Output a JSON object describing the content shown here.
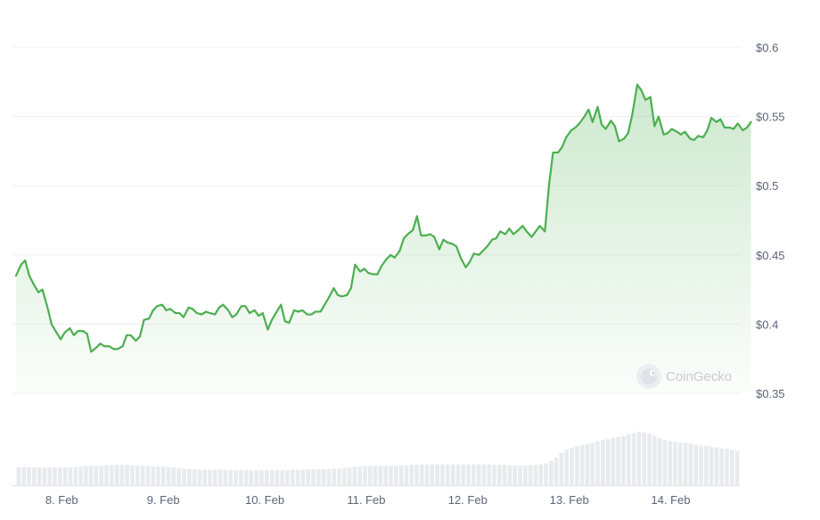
{
  "chart_data": {
    "type": "area",
    "title": "",
    "xlabel": "",
    "ylabel": "",
    "y_tick_labels": [
      "$0.35",
      "$0.4",
      "$0.45",
      "$0.5",
      "$0.55",
      "$0.6"
    ],
    "y_ticks": [
      0.35,
      0.4,
      0.45,
      0.5,
      0.55,
      0.6
    ],
    "ylim": [
      0.35,
      0.6
    ],
    "x_tick_labels": [
      "8. Feb",
      "9. Feb",
      "10. Feb",
      "11. Feb",
      "12. Feb",
      "13. Feb",
      "14. Feb"
    ],
    "x_ticks": [
      0.45,
      1.45,
      2.45,
      3.45,
      4.45,
      5.45,
      6.45
    ],
    "xlim": [
      0,
      7.13
    ],
    "grid": true,
    "legend": "none",
    "line_color": "#4caf50",
    "fill_color": "#4caf50",
    "volume_color": "#e8eaee",
    "watermark": "CoinGecko",
    "series": [
      {
        "values": [
          [
            0.0,
            0.435
          ],
          [
            0.05,
            0.443
          ],
          [
            0.09,
            0.446
          ],
          [
            0.13,
            0.435
          ],
          [
            0.18,
            0.428
          ],
          [
            0.22,
            0.423
          ],
          [
            0.26,
            0.425
          ],
          [
            0.31,
            0.412
          ],
          [
            0.35,
            0.4
          ],
          [
            0.39,
            0.395
          ],
          [
            0.44,
            0.389
          ],
          [
            0.48,
            0.394
          ],
          [
            0.53,
            0.397
          ],
          [
            0.57,
            0.392
          ],
          [
            0.61,
            0.395
          ],
          [
            0.66,
            0.395
          ],
          [
            0.7,
            0.393
          ],
          [
            0.74,
            0.38
          ],
          [
            0.79,
            0.383
          ],
          [
            0.83,
            0.386
          ],
          [
            0.87,
            0.384
          ],
          [
            0.92,
            0.384
          ],
          [
            0.96,
            0.382
          ],
          [
            1.0,
            0.382
          ],
          [
            1.05,
            0.384
          ],
          [
            1.09,
            0.392
          ],
          [
            1.13,
            0.392
          ],
          [
            1.18,
            0.388
          ],
          [
            1.22,
            0.391
          ],
          [
            1.26,
            0.403
          ],
          [
            1.31,
            0.404
          ],
          [
            1.35,
            0.41
          ],
          [
            1.39,
            0.413
          ],
          [
            1.44,
            0.414
          ],
          [
            1.48,
            0.41
          ],
          [
            1.52,
            0.411
          ],
          [
            1.57,
            0.408
          ],
          [
            1.61,
            0.408
          ],
          [
            1.65,
            0.405
          ],
          [
            1.7,
            0.412
          ],
          [
            1.74,
            0.411
          ],
          [
            1.78,
            0.408
          ],
          [
            1.83,
            0.407
          ],
          [
            1.87,
            0.409
          ],
          [
            1.91,
            0.408
          ],
          [
            1.96,
            0.407
          ],
          [
            2.0,
            0.412
          ],
          [
            2.04,
            0.414
          ],
          [
            2.09,
            0.41
          ],
          [
            2.13,
            0.405
          ],
          [
            2.17,
            0.407
          ],
          [
            2.22,
            0.413
          ],
          [
            2.26,
            0.413
          ],
          [
            2.3,
            0.408
          ],
          [
            2.35,
            0.41
          ],
          [
            2.39,
            0.406
          ],
          [
            2.43,
            0.408
          ],
          [
            2.48,
            0.396
          ],
          [
            2.52,
            0.403
          ],
          [
            2.56,
            0.408
          ],
          [
            2.61,
            0.414
          ],
          [
            2.65,
            0.402
          ],
          [
            2.69,
            0.401
          ],
          [
            2.74,
            0.41
          ],
          [
            2.78,
            0.409
          ],
          [
            2.82,
            0.41
          ],
          [
            2.87,
            0.407
          ],
          [
            2.91,
            0.407
          ],
          [
            2.95,
            0.409
          ],
          [
            3.0,
            0.409
          ],
          [
            3.04,
            0.414
          ],
          [
            3.08,
            0.419
          ],
          [
            3.13,
            0.426
          ],
          [
            3.17,
            0.421
          ],
          [
            3.21,
            0.42
          ],
          [
            3.26,
            0.421
          ],
          [
            3.3,
            0.426
          ],
          [
            3.34,
            0.443
          ],
          [
            3.39,
            0.438
          ],
          [
            3.43,
            0.44
          ],
          [
            3.47,
            0.437
          ],
          [
            3.52,
            0.436
          ],
          [
            3.56,
            0.436
          ],
          [
            3.6,
            0.442
          ],
          [
            3.65,
            0.447
          ],
          [
            3.69,
            0.45
          ],
          [
            3.73,
            0.448
          ],
          [
            3.78,
            0.453
          ],
          [
            3.82,
            0.462
          ],
          [
            3.86,
            0.465
          ],
          [
            3.91,
            0.468
          ],
          [
            3.95,
            0.478
          ],
          [
            3.99,
            0.464
          ],
          [
            4.04,
            0.464
          ],
          [
            4.08,
            0.465
          ],
          [
            4.12,
            0.463
          ],
          [
            4.17,
            0.454
          ],
          [
            4.21,
            0.461
          ],
          [
            4.25,
            0.459
          ],
          [
            4.3,
            0.458
          ],
          [
            4.34,
            0.456
          ],
          [
            4.38,
            0.448
          ],
          [
            4.43,
            0.441
          ],
          [
            4.47,
            0.445
          ],
          [
            4.51,
            0.451
          ],
          [
            4.56,
            0.45
          ],
          [
            4.6,
            0.453
          ],
          [
            4.64,
            0.456
          ],
          [
            4.69,
            0.461
          ],
          [
            4.73,
            0.462
          ],
          [
            4.77,
            0.467
          ],
          [
            4.82,
            0.465
          ],
          [
            4.86,
            0.469
          ],
          [
            4.9,
            0.465
          ],
          [
            4.95,
            0.468
          ],
          [
            4.99,
            0.471
          ],
          [
            5.03,
            0.467
          ],
          [
            5.08,
            0.463
          ],
          [
            5.12,
            0.467
          ],
          [
            5.16,
            0.471
          ],
          [
            5.21,
            0.467
          ],
          [
            5.25,
            0.5
          ],
          [
            5.29,
            0.524
          ],
          [
            5.34,
            0.524
          ],
          [
            5.38,
            0.528
          ],
          [
            5.42,
            0.535
          ],
          [
            5.47,
            0.54
          ],
          [
            5.51,
            0.542
          ],
          [
            5.55,
            0.545
          ],
          [
            5.6,
            0.55
          ],
          [
            5.64,
            0.555
          ],
          [
            5.68,
            0.546
          ],
          [
            5.73,
            0.557
          ],
          [
            5.77,
            0.544
          ],
          [
            5.81,
            0.541
          ],
          [
            5.86,
            0.547
          ],
          [
            5.9,
            0.543
          ],
          [
            5.94,
            0.532
          ],
          [
            5.99,
            0.534
          ],
          [
            6.03,
            0.538
          ],
          [
            6.07,
            0.551
          ],
          [
            6.12,
            0.573
          ],
          [
            6.16,
            0.569
          ],
          [
            6.2,
            0.562
          ],
          [
            6.25,
            0.564
          ],
          [
            6.29,
            0.543
          ],
          [
            6.33,
            0.55
          ],
          [
            6.38,
            0.537
          ],
          [
            6.42,
            0.538
          ],
          [
            6.46,
            0.541
          ],
          [
            6.51,
            0.539
          ],
          [
            6.55,
            0.537
          ],
          [
            6.59,
            0.539
          ],
          [
            6.64,
            0.534
          ],
          [
            6.68,
            0.533
          ],
          [
            6.72,
            0.536
          ],
          [
            6.77,
            0.535
          ],
          [
            6.81,
            0.54
          ],
          [
            6.85,
            0.549
          ],
          [
            6.9,
            0.546
          ],
          [
            6.94,
            0.548
          ],
          [
            6.98,
            0.542
          ],
          [
            7.03,
            0.542
          ],
          [
            7.07,
            0.541
          ],
          [
            7.11,
            0.545
          ],
          [
            7.16,
            0.54
          ],
          [
            7.2,
            0.542
          ],
          [
            7.24,
            0.546
          ]
        ]
      }
    ],
    "volume_relative": [
      0.34,
      0.34,
      0.34,
      0.33,
      0.33,
      0.33,
      0.33,
      0.33,
      0.33,
      0.33,
      0.33,
      0.34,
      0.35,
      0.36,
      0.36,
      0.36,
      0.37,
      0.38,
      0.38,
      0.38,
      0.38,
      0.38,
      0.37,
      0.37,
      0.36,
      0.36,
      0.35,
      0.35,
      0.35,
      0.34,
      0.33,
      0.32,
      0.31,
      0.3,
      0.3,
      0.29,
      0.29,
      0.29,
      0.29,
      0.29,
      0.29,
      0.28,
      0.28,
      0.28,
      0.28,
      0.28,
      0.28,
      0.28,
      0.28,
      0.28,
      0.28,
      0.28,
      0.28,
      0.29,
      0.29,
      0.29,
      0.3,
      0.3,
      0.3,
      0.3,
      0.3,
      0.31,
      0.31,
      0.32,
      0.33,
      0.34,
      0.35,
      0.36,
      0.36,
      0.36,
      0.36,
      0.36,
      0.36,
      0.36,
      0.37,
      0.37,
      0.38,
      0.38,
      0.39,
      0.39,
      0.39,
      0.39,
      0.39,
      0.39,
      0.39,
      0.39,
      0.39,
      0.39,
      0.39,
      0.39,
      0.39,
      0.39,
      0.38,
      0.38,
      0.38,
      0.37,
      0.37,
      0.37,
      0.37,
      0.37,
      0.38,
      0.39,
      0.41,
      0.45,
      0.52,
      0.6,
      0.66,
      0.7,
      0.73,
      0.75,
      0.77,
      0.79,
      0.82,
      0.84,
      0.86,
      0.88,
      0.9,
      0.92,
      0.95,
      0.97,
      1.0,
      0.98,
      0.96,
      0.92,
      0.88,
      0.85,
      0.83,
      0.81,
      0.8,
      0.79,
      0.78,
      0.76,
      0.74,
      0.73,
      0.72,
      0.71,
      0.69,
      0.68,
      0.66,
      0.64
    ]
  }
}
